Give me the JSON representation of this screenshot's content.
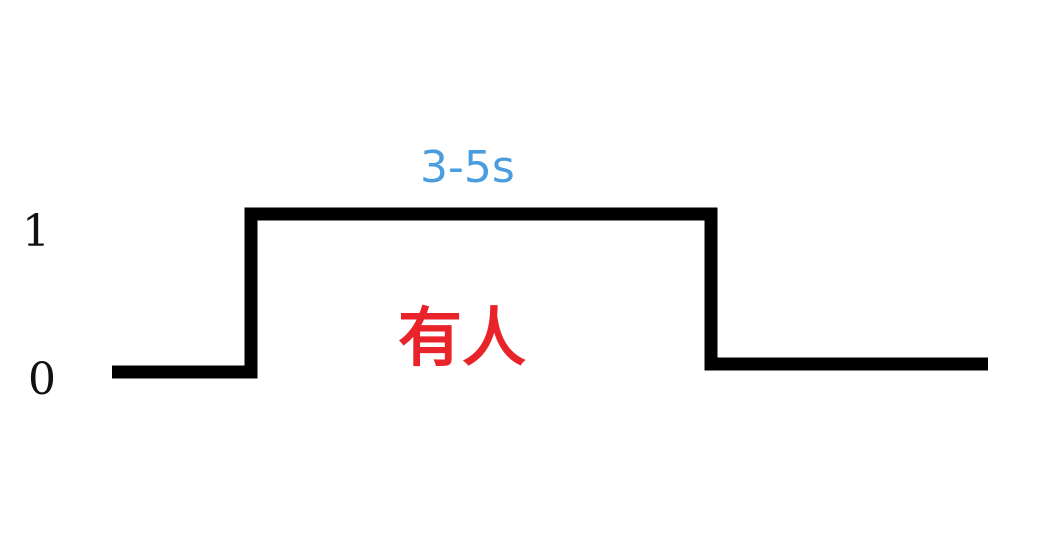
{
  "diagram": {
    "levels": {
      "high": "1",
      "low": "0"
    },
    "pulse": {
      "duration_label": "3-5s",
      "state_label": "有人"
    },
    "colors": {
      "signal": "#000000",
      "duration_label": "#4a9ee0",
      "state_label": "#e8232a",
      "level_label": "#111111"
    }
  }
}
